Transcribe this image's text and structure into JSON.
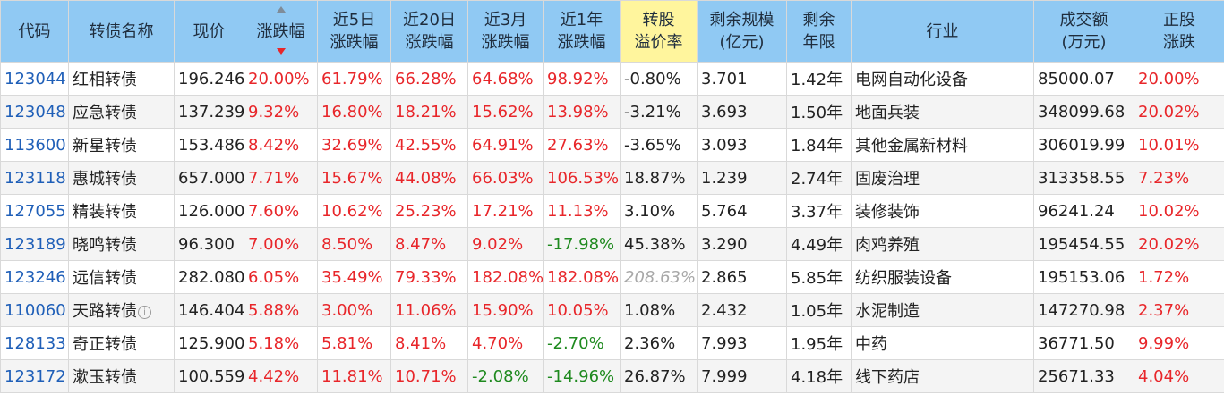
{
  "headers": [
    {
      "key": "code",
      "lines": [
        "代码"
      ]
    },
    {
      "key": "name",
      "lines": [
        "转债名称"
      ]
    },
    {
      "key": "price",
      "lines": [
        "现价"
      ]
    },
    {
      "key": "change",
      "lines": [
        "涨跌幅"
      ]
    },
    {
      "key": "chg5d",
      "lines": [
        "近5日",
        "涨跌幅"
      ]
    },
    {
      "key": "chg20d",
      "lines": [
        "近20日",
        "涨跌幅"
      ]
    },
    {
      "key": "chg3m",
      "lines": [
        "近3月",
        "涨跌幅"
      ]
    },
    {
      "key": "chg1y",
      "lines": [
        "近1年",
        "涨跌幅"
      ]
    },
    {
      "key": "premium",
      "lines": [
        "转股",
        "溢价率"
      ]
    },
    {
      "key": "scale",
      "lines": [
        "剩余规模",
        "(亿元)"
      ]
    },
    {
      "key": "years",
      "lines": [
        "剩余",
        "年限"
      ]
    },
    {
      "key": "industry",
      "lines": [
        "行业"
      ]
    },
    {
      "key": "turnover",
      "lines": [
        "成交额",
        "(万元)"
      ]
    },
    {
      "key": "stock_chg",
      "lines": [
        "正股",
        "涨跌"
      ]
    }
  ],
  "rows": [
    {
      "code": "123044",
      "name": "红相转债",
      "price": "196.246",
      "change": "20.00%",
      "chg5d": "61.79%",
      "chg20d": "66.28%",
      "chg3m": "64.68%",
      "chg1y": "98.92%",
      "premium": "-0.80%",
      "scale": "3.701",
      "years": "1.42年",
      "industry": "电网自动化设备",
      "turnover": "85000.07",
      "stock_chg": "20.00%"
    },
    {
      "code": "123048",
      "name": "应急转债",
      "price": "137.239",
      "change": "9.32%",
      "chg5d": "16.80%",
      "chg20d": "18.21%",
      "chg3m": "15.62%",
      "chg1y": "13.98%",
      "premium": "-3.21%",
      "scale": "3.693",
      "years": "1.50年",
      "industry": "地面兵装",
      "turnover": "348099.68",
      "stock_chg": "20.02%"
    },
    {
      "code": "113600",
      "name": "新星转债",
      "price": "153.486",
      "change": "8.42%",
      "chg5d": "32.69%",
      "chg20d": "42.55%",
      "chg3m": "64.91%",
      "chg1y": "27.63%",
      "premium": "-3.65%",
      "scale": "3.093",
      "years": "1.84年",
      "industry": "其他金属新材料",
      "turnover": "306019.99",
      "stock_chg": "10.01%"
    },
    {
      "code": "123118",
      "name": "惠城转债",
      "price": "657.000",
      "change": "7.71%",
      "chg5d": "15.67%",
      "chg20d": "44.08%",
      "chg3m": "66.03%",
      "chg1y": "106.53%",
      "premium": "18.87%",
      "scale": "1.239",
      "years": "2.74年",
      "industry": "固废治理",
      "turnover": "313358.55",
      "stock_chg": "7.23%"
    },
    {
      "code": "127055",
      "name": "精装转债",
      "price": "126.000",
      "change": "7.60%",
      "chg5d": "10.62%",
      "chg20d": "25.23%",
      "chg3m": "17.21%",
      "chg1y": "11.13%",
      "premium": "3.10%",
      "scale": "5.764",
      "years": "3.37年",
      "industry": "装修装饰",
      "turnover": "96241.24",
      "stock_chg": "10.02%"
    },
    {
      "code": "123189",
      "name": "晓鸣转债",
      "price": "96.300",
      "change": "7.00%",
      "chg5d": "8.50%",
      "chg20d": "8.47%",
      "chg3m": "9.02%",
      "chg1y": "-17.98%",
      "premium": "45.38%",
      "scale": "3.290",
      "years": "4.49年",
      "industry": "肉鸡养殖",
      "turnover": "195454.55",
      "stock_chg": "20.02%"
    },
    {
      "code": "123246",
      "name": "远信转债",
      "price": "282.080",
      "change": "6.05%",
      "chg5d": "35.49%",
      "chg20d": "79.33%",
      "chg3m": "182.08%",
      "chg1y": "182.08%",
      "premium": "208.63%",
      "scale": "2.865",
      "years": "5.85年",
      "industry": "纺织服装设备",
      "turnover": "195153.06",
      "stock_chg": "1.72%",
      "premium_dim": true
    },
    {
      "code": "110060",
      "name": "天路转债",
      "price": "146.404",
      "change": "5.88%",
      "chg5d": "3.00%",
      "chg20d": "11.06%",
      "chg3m": "15.90%",
      "chg1y": "10.05%",
      "premium": "1.08%",
      "scale": "2.432",
      "years": "1.05年",
      "industry": "水泥制造",
      "turnover": "147270.98",
      "stock_chg": "2.37%",
      "info": true
    },
    {
      "code": "128133",
      "name": "奇正转债",
      "price": "125.900",
      "change": "5.18%",
      "chg5d": "5.81%",
      "chg20d": "8.41%",
      "chg3m": "4.70%",
      "chg1y": "-2.70%",
      "premium": "2.36%",
      "scale": "7.993",
      "years": "1.95年",
      "industry": "中药",
      "turnover": "36771.50",
      "stock_chg": "9.99%"
    },
    {
      "code": "123172",
      "name": "漱玉转债",
      "price": "100.559",
      "change": "4.42%",
      "chg5d": "11.81%",
      "chg20d": "10.71%",
      "chg3m": "-2.08%",
      "chg1y": "-14.96%",
      "premium": "26.87%",
      "scale": "7.999",
      "years": "4.18年",
      "industry": "线下药店",
      "turnover": "25671.33",
      "stock_chg": "4.04%"
    }
  ],
  "colors": {
    "header_bg": "#90c9f3",
    "highlight_header": "#fff59d",
    "up": "#e8262a",
    "down": "#1f8a1f",
    "code": "#1f5fb8"
  },
  "sorted_column": "change",
  "sort_direction": "desc",
  "highlighted_column": "premium",
  "icons": {
    "info": "info-circle-icon"
  }
}
